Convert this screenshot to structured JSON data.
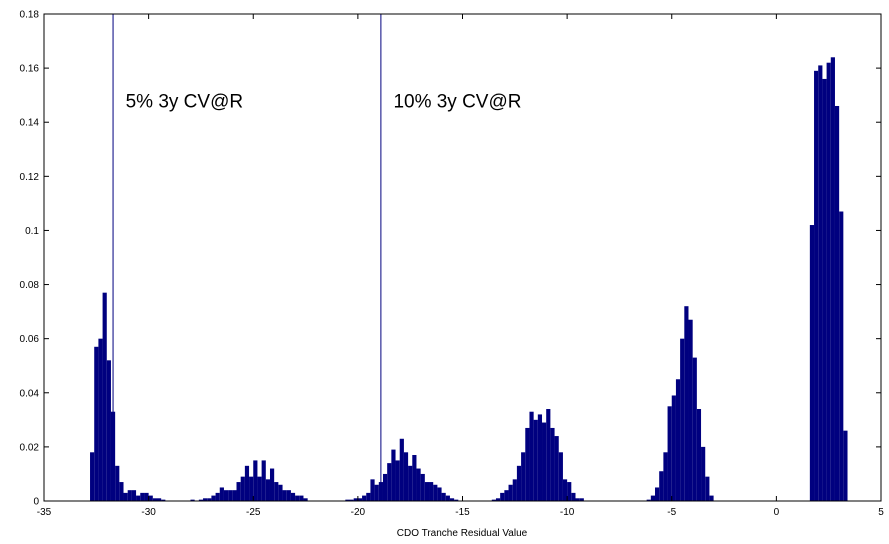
{
  "chart_data": {
    "type": "bar",
    "title": "",
    "xlabel": "CDO Tranche Residual Value",
    "ylabel": "",
    "xlim": [
      -35,
      5
    ],
    "ylim": [
      0,
      0.18
    ],
    "grid": false,
    "legend": "none",
    "colors": {
      "bars": "#00007f",
      "vlines": "#00007f",
      "axes": "#000000",
      "background": "#ffffff"
    },
    "x_ticks": [
      "-35",
      "-30",
      "-25",
      "-20",
      "-15",
      "-10",
      "-5",
      "0",
      "5"
    ],
    "x_tick_values": [
      -35,
      -30,
      -25,
      -20,
      -15,
      -10,
      -5,
      0,
      5
    ],
    "y_ticks": [
      "0",
      "0.02",
      "0.04",
      "0.06",
      "0.08",
      "0.1",
      "0.12",
      "0.14",
      "0.16",
      "0.18"
    ],
    "y_tick_values": [
      0,
      0.02,
      0.04,
      0.06,
      0.08,
      0.1,
      0.12,
      0.14,
      0.16,
      0.18
    ],
    "bin_width": 0.2,
    "bins": [
      {
        "x": -32.7,
        "y": 0.018
      },
      {
        "x": -32.5,
        "y": 0.057
      },
      {
        "x": -32.3,
        "y": 0.06
      },
      {
        "x": -32.1,
        "y": 0.077
      },
      {
        "x": -31.9,
        "y": 0.052
      },
      {
        "x": -31.7,
        "y": 0.033
      },
      {
        "x": -31.5,
        "y": 0.013
      },
      {
        "x": -31.3,
        "y": 0.007
      },
      {
        "x": -31.1,
        "y": 0.003
      },
      {
        "x": -30.9,
        "y": 0.004
      },
      {
        "x": -30.7,
        "y": 0.004
      },
      {
        "x": -30.5,
        "y": 0.002
      },
      {
        "x": -30.3,
        "y": 0.003
      },
      {
        "x": -30.1,
        "y": 0.003
      },
      {
        "x": -29.9,
        "y": 0.002
      },
      {
        "x": -29.7,
        "y": 0.001
      },
      {
        "x": -29.5,
        "y": 0.001
      },
      {
        "x": -29.3,
        "y": 0.0005
      },
      {
        "x": -27.9,
        "y": 0.0005
      },
      {
        "x": -27.5,
        "y": 0.0005
      },
      {
        "x": -27.3,
        "y": 0.001
      },
      {
        "x": -27.1,
        "y": 0.001
      },
      {
        "x": -26.9,
        "y": 0.002
      },
      {
        "x": -26.7,
        "y": 0.003
      },
      {
        "x": -26.5,
        "y": 0.005
      },
      {
        "x": -26.3,
        "y": 0.004
      },
      {
        "x": -26.1,
        "y": 0.004
      },
      {
        "x": -25.9,
        "y": 0.004
      },
      {
        "x": -25.7,
        "y": 0.007
      },
      {
        "x": -25.5,
        "y": 0.009
      },
      {
        "x": -25.3,
        "y": 0.013
      },
      {
        "x": -25.1,
        "y": 0.009
      },
      {
        "x": -24.9,
        "y": 0.015
      },
      {
        "x": -24.7,
        "y": 0.009
      },
      {
        "x": -24.5,
        "y": 0.015
      },
      {
        "x": -24.3,
        "y": 0.008
      },
      {
        "x": -24.1,
        "y": 0.012
      },
      {
        "x": -23.9,
        "y": 0.007
      },
      {
        "x": -23.7,
        "y": 0.006
      },
      {
        "x": -23.5,
        "y": 0.004
      },
      {
        "x": -23.3,
        "y": 0.004
      },
      {
        "x": -23.1,
        "y": 0.003
      },
      {
        "x": -22.9,
        "y": 0.002
      },
      {
        "x": -22.7,
        "y": 0.002
      },
      {
        "x": -22.5,
        "y": 0.001
      },
      {
        "x": -20.5,
        "y": 0.0005
      },
      {
        "x": -20.3,
        "y": 0.0005
      },
      {
        "x": -20.1,
        "y": 0.001
      },
      {
        "x": -19.9,
        "y": 0.001
      },
      {
        "x": -19.7,
        "y": 0.002
      },
      {
        "x": -19.5,
        "y": 0.003
      },
      {
        "x": -19.3,
        "y": 0.008
      },
      {
        "x": -19.1,
        "y": 0.006
      },
      {
        "x": -18.9,
        "y": 0.007
      },
      {
        "x": -18.7,
        "y": 0.01
      },
      {
        "x": -18.5,
        "y": 0.014
      },
      {
        "x": -18.3,
        "y": 0.019
      },
      {
        "x": -18.1,
        "y": 0.015
      },
      {
        "x": -17.9,
        "y": 0.023
      },
      {
        "x": -17.7,
        "y": 0.018
      },
      {
        "x": -17.5,
        "y": 0.013
      },
      {
        "x": -17.3,
        "y": 0.017
      },
      {
        "x": -17.1,
        "y": 0.012
      },
      {
        "x": -16.9,
        "y": 0.01
      },
      {
        "x": -16.7,
        "y": 0.007
      },
      {
        "x": -16.5,
        "y": 0.007
      },
      {
        "x": -16.3,
        "y": 0.006
      },
      {
        "x": -16.1,
        "y": 0.005
      },
      {
        "x": -15.9,
        "y": 0.003
      },
      {
        "x": -15.7,
        "y": 0.002
      },
      {
        "x": -15.5,
        "y": 0.001
      },
      {
        "x": -15.3,
        "y": 0.0005
      },
      {
        "x": -13.5,
        "y": 0.0005
      },
      {
        "x": -13.3,
        "y": 0.001
      },
      {
        "x": -13.1,
        "y": 0.003
      },
      {
        "x": -12.9,
        "y": 0.004
      },
      {
        "x": -12.7,
        "y": 0.006
      },
      {
        "x": -12.5,
        "y": 0.008
      },
      {
        "x": -12.3,
        "y": 0.013
      },
      {
        "x": -12.1,
        "y": 0.018
      },
      {
        "x": -11.9,
        "y": 0.027
      },
      {
        "x": -11.7,
        "y": 0.033
      },
      {
        "x": -11.5,
        "y": 0.03
      },
      {
        "x": -11.3,
        "y": 0.032
      },
      {
        "x": -11.1,
        "y": 0.029
      },
      {
        "x": -10.9,
        "y": 0.034
      },
      {
        "x": -10.7,
        "y": 0.027
      },
      {
        "x": -10.5,
        "y": 0.024
      },
      {
        "x": -10.3,
        "y": 0.018
      },
      {
        "x": -10.1,
        "y": 0.008
      },
      {
        "x": -9.9,
        "y": 0.007
      },
      {
        "x": -9.7,
        "y": 0.003
      },
      {
        "x": -9.5,
        "y": 0.001
      },
      {
        "x": -9.3,
        "y": 0.001
      },
      {
        "x": -6.1,
        "y": 0.0005
      },
      {
        "x": -5.9,
        "y": 0.002
      },
      {
        "x": -5.7,
        "y": 0.005
      },
      {
        "x": -5.5,
        "y": 0.011
      },
      {
        "x": -5.3,
        "y": 0.018
      },
      {
        "x": -5.1,
        "y": 0.035
      },
      {
        "x": -4.9,
        "y": 0.039
      },
      {
        "x": -4.7,
        "y": 0.045
      },
      {
        "x": -4.5,
        "y": 0.06
      },
      {
        "x": -4.3,
        "y": 0.072
      },
      {
        "x": -4.1,
        "y": 0.067
      },
      {
        "x": -3.9,
        "y": 0.053
      },
      {
        "x": -3.7,
        "y": 0.034
      },
      {
        "x": -3.5,
        "y": 0.02
      },
      {
        "x": -3.3,
        "y": 0.009
      },
      {
        "x": -3.1,
        "y": 0.002
      },
      {
        "x": 1.7,
        "y": 0.102
      },
      {
        "x": 1.9,
        "y": 0.159
      },
      {
        "x": 2.1,
        "y": 0.161
      },
      {
        "x": 2.3,
        "y": 0.156
      },
      {
        "x": 2.5,
        "y": 0.162
      },
      {
        "x": 2.7,
        "y": 0.164
      },
      {
        "x": 2.9,
        "y": 0.146
      },
      {
        "x": 3.1,
        "y": 0.107
      },
      {
        "x": 3.3,
        "y": 0.026
      }
    ],
    "vlines": [
      {
        "x": -31.7,
        "label": "5% 3y CV@R"
      },
      {
        "x": -18.9,
        "label": "10% 3y CV@R"
      }
    ],
    "annotations": [
      {
        "text": "5% 3y CV@R",
        "x": -31.1,
        "y": 0.148
      },
      {
        "text": "10% 3y CV@R",
        "x": -18.3,
        "y": 0.148
      }
    ]
  }
}
